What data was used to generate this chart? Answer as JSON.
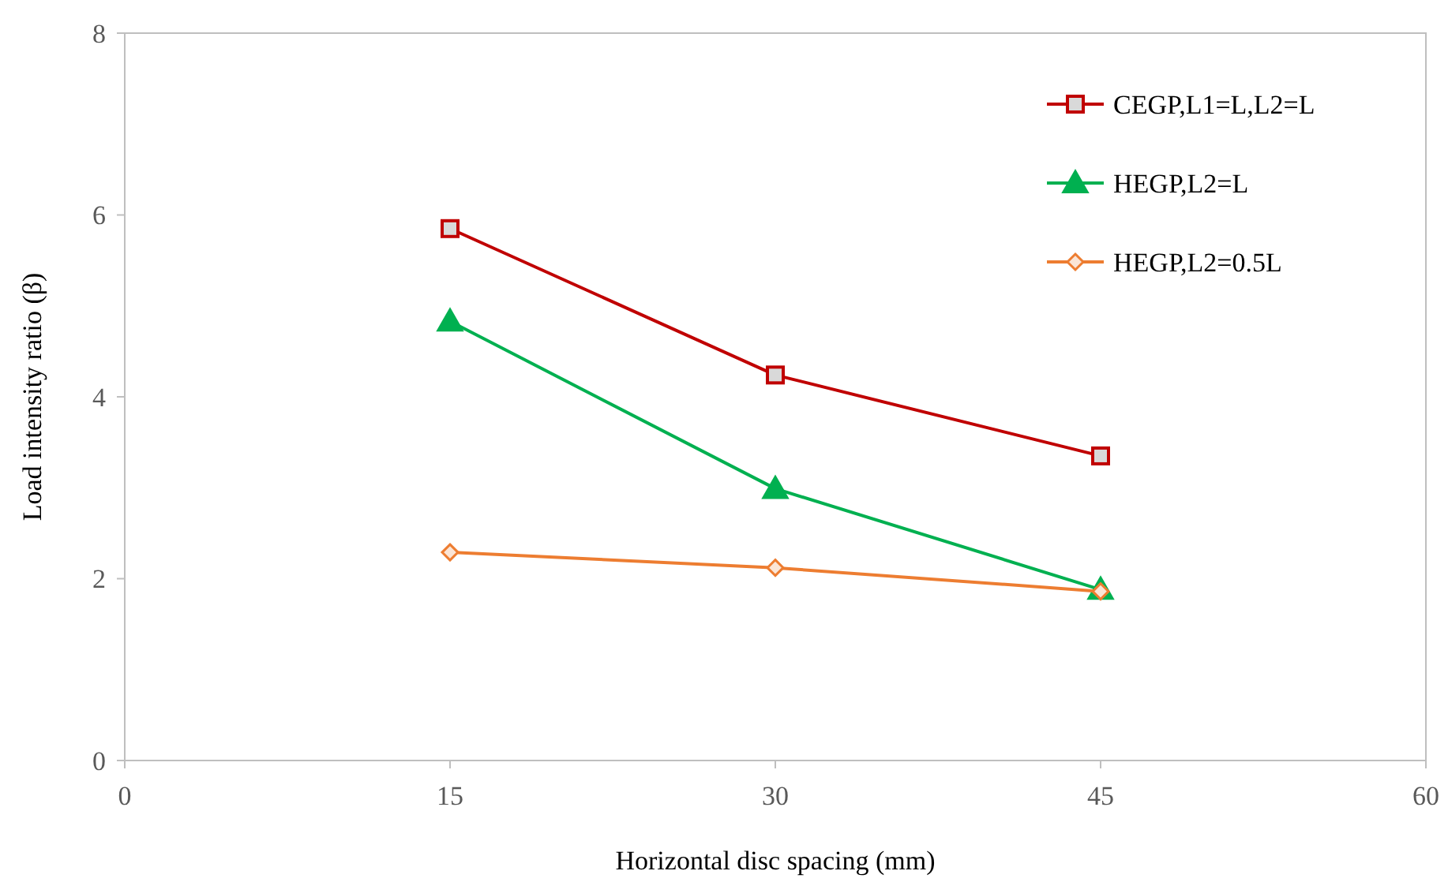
{
  "chart_data": {
    "type": "line",
    "xlabel": "Horizontal disc spacing (mm)",
    "ylabel": "Load intensity ratio (β)",
    "x": [
      15,
      30,
      45
    ],
    "xlim": [
      0,
      60
    ],
    "xticks": [
      0,
      15,
      30,
      45,
      60
    ],
    "ylim": [
      0,
      8
    ],
    "yticks": [
      0,
      2,
      4,
      6,
      8
    ],
    "grid": false,
    "legend": "top right",
    "line_style": "solid",
    "series": [
      {
        "name": "CEGP,L1=L,L2=L",
        "color": "#c00000",
        "marker": "square",
        "values": [
          5.85,
          4.24,
          3.35
        ]
      },
      {
        "name": "HEGP,L2=L",
        "color": "#00b050",
        "marker": "triangle",
        "values": [
          4.83,
          2.99,
          1.88
        ]
      },
      {
        "name": "HEGP,L2=0.5L",
        "color": "#ed7d31",
        "marker": "diamond",
        "values": [
          2.29,
          2.12,
          1.86
        ]
      }
    ]
  }
}
